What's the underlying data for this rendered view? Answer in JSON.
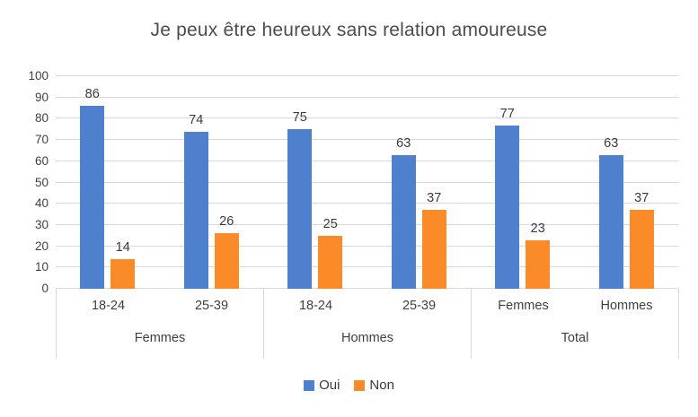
{
  "chart_data": {
    "type": "bar",
    "title": "Je peux être heureux sans relation amoureuse",
    "groups": [
      {
        "label": "Femmes",
        "categories": [
          "18-24",
          "25-39"
        ]
      },
      {
        "label": "Hommes",
        "categories": [
          "18-24",
          "25-39"
        ]
      },
      {
        "label": "Total",
        "categories": [
          "Femmes",
          "Hommes"
        ]
      }
    ],
    "categories": [
      "18-24",
      "25-39",
      "18-24",
      "25-39",
      "Femmes",
      "Hommes"
    ],
    "series": [
      {
        "name": "Oui",
        "color": "#4e80ce",
        "values": [
          86,
          74,
          75,
          63,
          77,
          63
        ]
      },
      {
        "name": "Non",
        "color": "#fb8a28",
        "values": [
          14,
          26,
          25,
          37,
          23,
          37
        ]
      }
    ],
    "ylim": [
      0,
      100
    ],
    "yticks": [
      100,
      90,
      80,
      70,
      60,
      50,
      40,
      30,
      20,
      10,
      0
    ],
    "grid": true,
    "legend_position": "bottom",
    "colors": {
      "gridline": "#d9d9d9",
      "axis_line": "#d9d9d9",
      "text": "#3f3f3f",
      "title_text": "#4d4d4d"
    }
  }
}
